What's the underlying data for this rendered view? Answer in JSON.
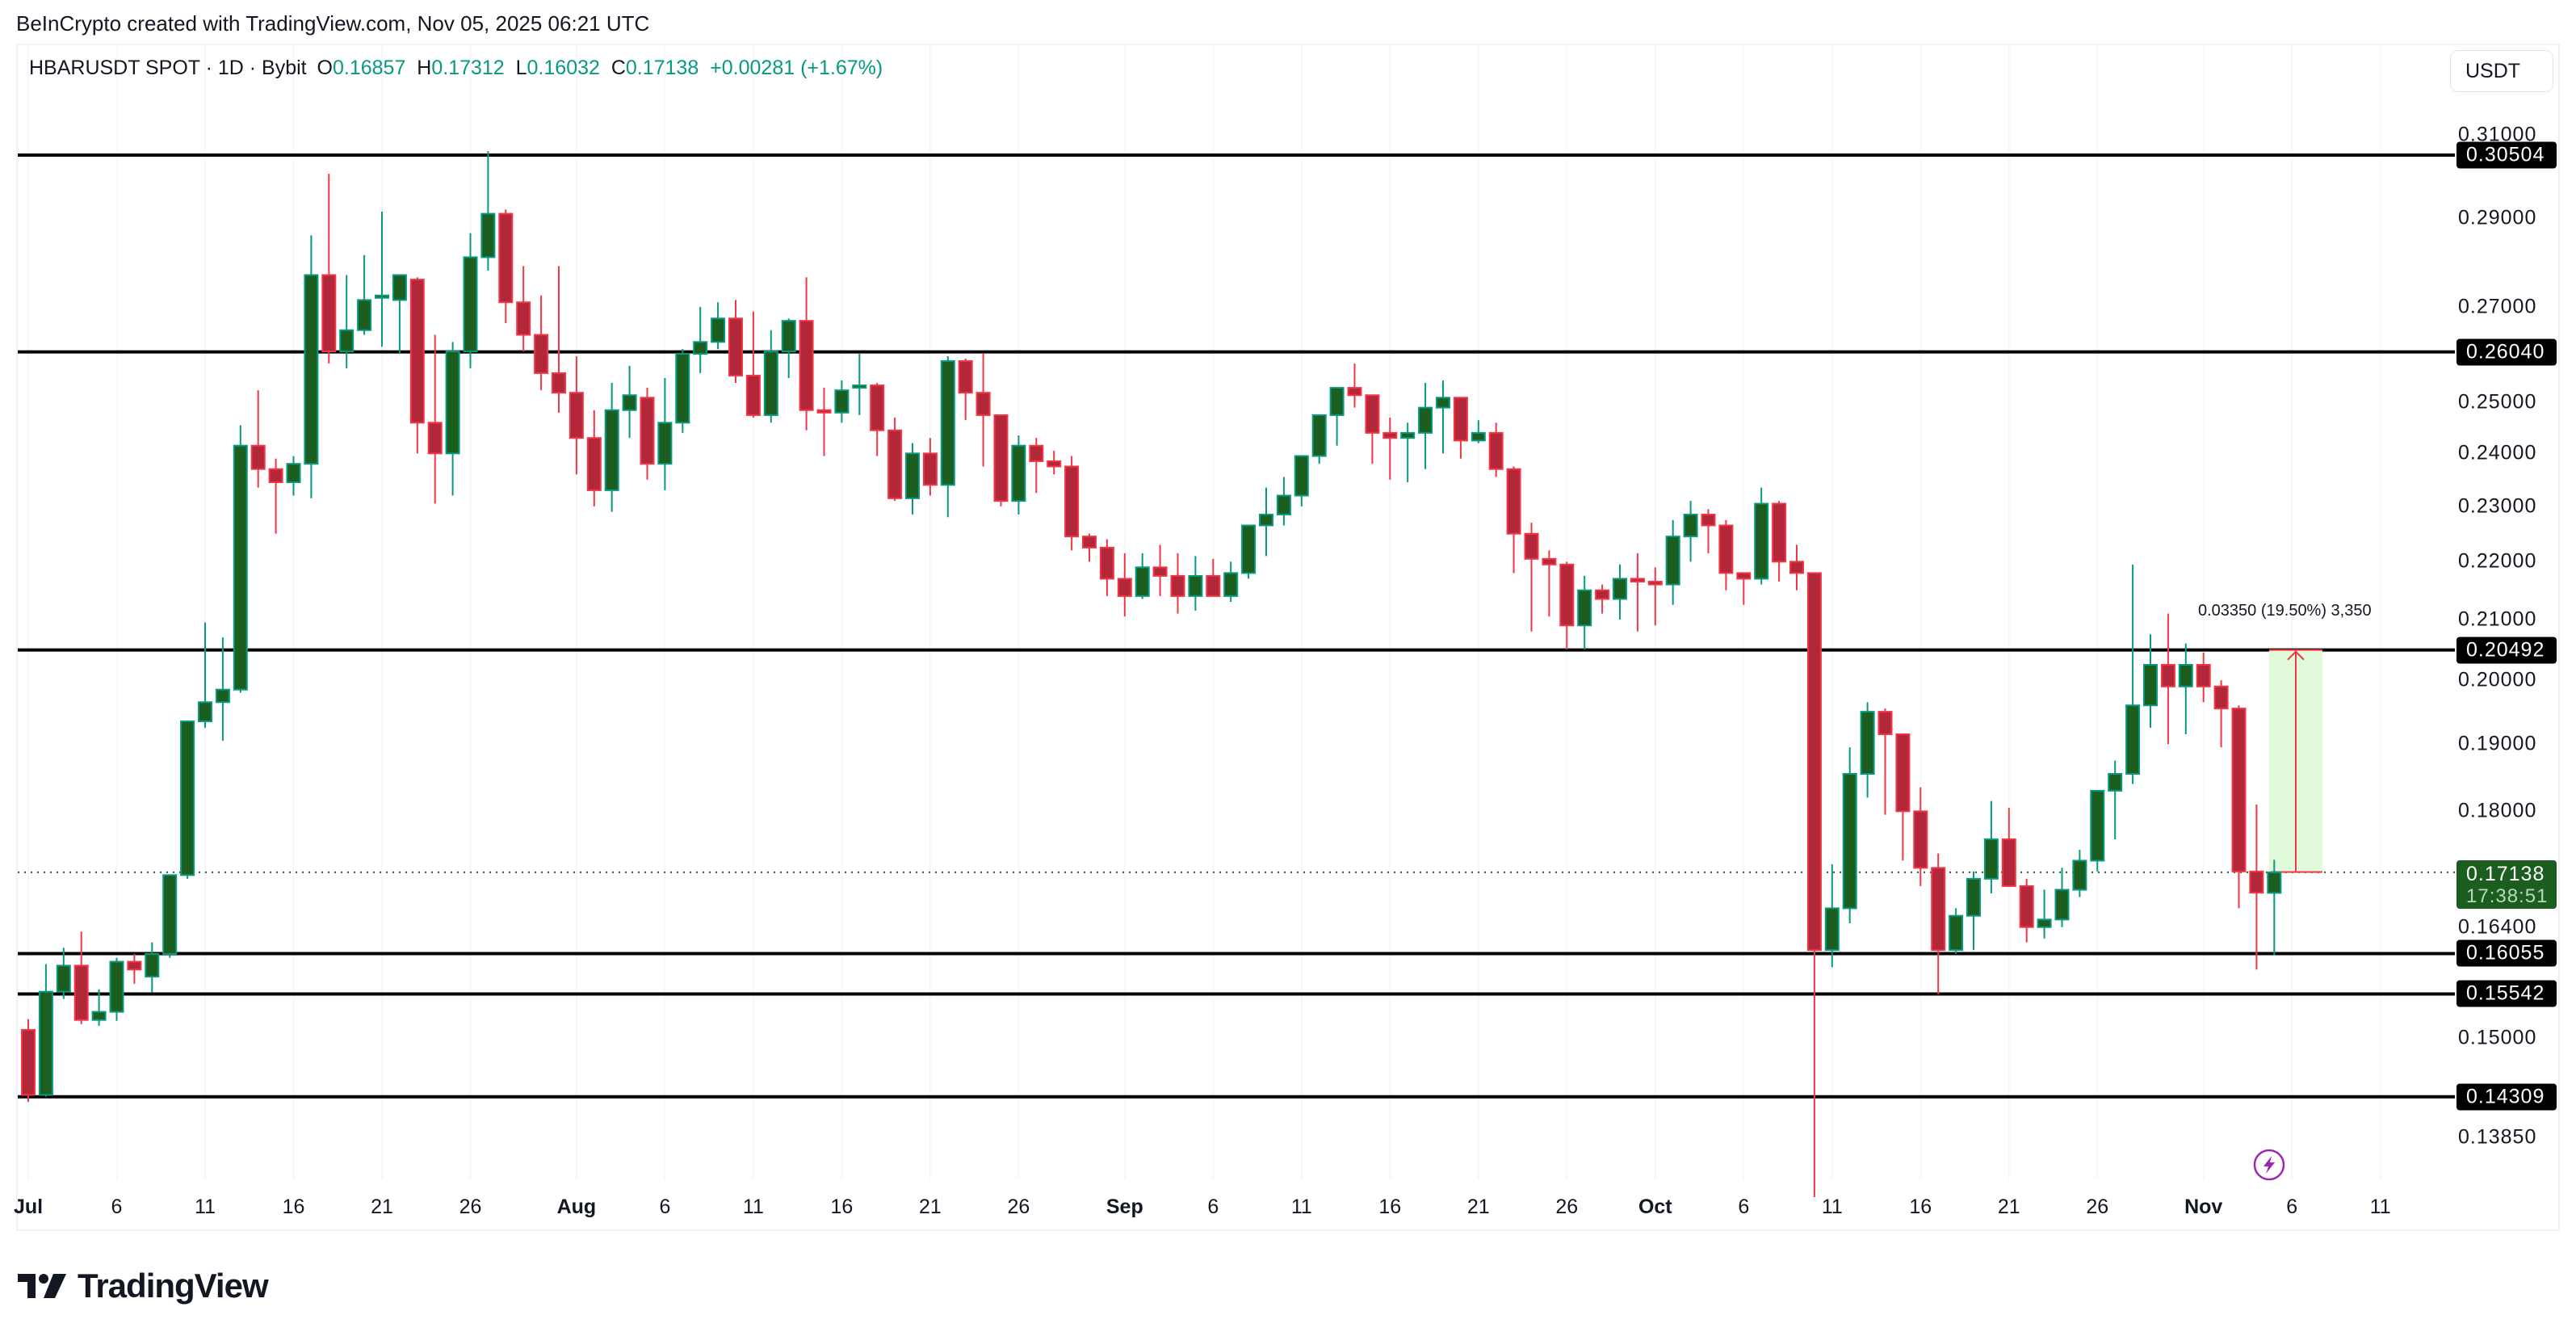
{
  "header": {
    "credit": "BeInCrypto created with TradingView.com, Nov 05, 2025 06:21 UTC"
  },
  "legend": {
    "symbol": "HBARUSDT SPOT · 1D · Bybit",
    "open_label": "O",
    "open": "0.16857",
    "high_label": "H",
    "high": "0.17312",
    "low_label": "L",
    "low": "0.16032",
    "close_label": "C",
    "close": "0.17138",
    "change": "+0.00281 (+1.67%)"
  },
  "currency_button": "USDT",
  "price_axis": {
    "ticks": [
      "0.31000",
      "0.29000",
      "0.27000",
      "0.25000",
      "0.24000",
      "0.23000",
      "0.22000",
      "0.21000",
      "0.20000",
      "0.19000",
      "0.18000",
      "0.16400",
      "0.15000",
      "0.13850"
    ],
    "tick_values": [
      0.31,
      0.29,
      0.27,
      0.25,
      0.24,
      0.23,
      0.22,
      0.21,
      0.2,
      0.19,
      0.18,
      0.164,
      0.15,
      0.1385
    ]
  },
  "horizontal_levels": [
    {
      "label": "0.30504",
      "value": 0.30504
    },
    {
      "label": "0.26040",
      "value": 0.2604
    },
    {
      "label": "0.20492",
      "value": 0.20492
    },
    {
      "label": "0.16055",
      "value": 0.16055
    },
    {
      "label": "0.15542",
      "value": 0.15542
    },
    {
      "label": "0.14309",
      "value": 0.14309
    }
  ],
  "current_price": {
    "label": "0.17138",
    "value": 0.17138,
    "countdown": "17:38:51"
  },
  "measure_tool": {
    "label": "0.03350 (19.50%) 3,350",
    "from": 0.17142,
    "to": 0.20492,
    "start_day": 127,
    "end_day": 130
  },
  "time_axis": [
    {
      "label": "Jul",
      "day": 0,
      "bold": true
    },
    {
      "label": "6",
      "day": 5
    },
    {
      "label": "11",
      "day": 10
    },
    {
      "label": "16",
      "day": 15
    },
    {
      "label": "21",
      "day": 20
    },
    {
      "label": "26",
      "day": 25
    },
    {
      "label": "Aug",
      "day": 31,
      "bold": true
    },
    {
      "label": "6",
      "day": 36
    },
    {
      "label": "11",
      "day": 41
    },
    {
      "label": "16",
      "day": 46
    },
    {
      "label": "21",
      "day": 51
    },
    {
      "label": "26",
      "day": 56
    },
    {
      "label": "Sep",
      "day": 62,
      "bold": true
    },
    {
      "label": "6",
      "day": 67
    },
    {
      "label": "11",
      "day": 72
    },
    {
      "label": "16",
      "day": 77
    },
    {
      "label": "21",
      "day": 82
    },
    {
      "label": "26",
      "day": 87
    },
    {
      "label": "Oct",
      "day": 92,
      "bold": true
    },
    {
      "label": "6",
      "day": 97
    },
    {
      "label": "11",
      "day": 102
    },
    {
      "label": "16",
      "day": 107
    },
    {
      "label": "21",
      "day": 112
    },
    {
      "label": "26",
      "day": 117
    },
    {
      "label": "Nov",
      "day": 123,
      "bold": true
    },
    {
      "label": "6",
      "day": 128
    },
    {
      "label": "11",
      "day": 133
    }
  ],
  "colors": {
    "up_body": "#1b5e20",
    "up_border": "#089981",
    "down_body": "#b2283a",
    "down_border": "#f23645",
    "level_line": "#000000",
    "measure_fill": "#e1fadc",
    "measure_line": "#f23645",
    "flash_icon": "#9c27b0"
  },
  "footer": {
    "logo_text": "TradingView"
  },
  "chart_data": {
    "type": "candlestick",
    "title": "HBARUSDT SPOT · 1D · Bybit",
    "xlabel": "",
    "ylabel": "USDT",
    "ylim": [
      0.133,
      0.314
    ],
    "y_scale": "log",
    "x_start": "2025-07-01",
    "x_end": "2025-11-05",
    "columns": [
      "date",
      "open",
      "high",
      "low",
      "close"
    ],
    "candles": [
      [
        "Jul 01",
        0.151,
        0.1523,
        0.1425,
        0.1433
      ],
      [
        "Jul 02",
        0.1433,
        0.1592,
        0.1431,
        0.1557
      ],
      [
        "Jul 03",
        0.1557,
        0.1613,
        0.1548,
        0.159
      ],
      [
        "Jul 04",
        0.159,
        0.1634,
        0.1517,
        0.1522
      ],
      [
        "Jul 05",
        0.1522,
        0.156,
        0.1515,
        0.1532
      ],
      [
        "Jul 06",
        0.1532,
        0.16,
        0.1521,
        0.1595
      ],
      [
        "Jul 07",
        0.1595,
        0.1605,
        0.1567,
        0.1585
      ],
      [
        "Jul 08",
        0.1576,
        0.162,
        0.1556,
        0.1605
      ],
      [
        "Jul 09",
        0.1605,
        0.171,
        0.16,
        0.171
      ],
      [
        "Jul 10",
        0.171,
        0.193,
        0.1705,
        0.1935
      ],
      [
        "Jul 11",
        0.1935,
        0.2095,
        0.1925,
        0.1965
      ],
      [
        "Jul 12",
        0.1965,
        0.207,
        0.1905,
        0.1985
      ],
      [
        "Jul 13",
        0.1985,
        0.2455,
        0.198,
        0.2415
      ],
      [
        "Jul 14",
        0.2415,
        0.2525,
        0.2335,
        0.237
      ],
      [
        "Jul 15",
        0.237,
        0.239,
        0.225,
        0.2345
      ],
      [
        "Jul 16",
        0.2345,
        0.2395,
        0.232,
        0.238
      ],
      [
        "Jul 17",
        0.238,
        0.286,
        0.2315,
        0.277
      ],
      [
        "Jul 18",
        0.277,
        0.3005,
        0.258,
        0.2605
      ],
      [
        "Jul 19",
        0.2605,
        0.277,
        0.257,
        0.265
      ],
      [
        "Jul 20",
        0.265,
        0.2815,
        0.264,
        0.2715
      ],
      [
        "Jul 21",
        0.272,
        0.2915,
        0.2615,
        0.2725
      ],
      [
        "Jul 22",
        0.2715,
        0.276,
        0.26,
        0.277
      ],
      [
        "Jul 23",
        0.276,
        0.2765,
        0.24,
        0.246
      ],
      [
        "Jul 24",
        0.246,
        0.264,
        0.2305,
        0.24
      ],
      [
        "Jul 25",
        0.24,
        0.2625,
        0.232,
        0.2605
      ],
      [
        "Jul 26",
        0.2605,
        0.2865,
        0.257,
        0.281
      ],
      [
        "Jul 27",
        0.281,
        0.306,
        0.278,
        0.291
      ],
      [
        "Jul 28",
        0.291,
        0.292,
        0.2665,
        0.271
      ],
      [
        "Jul 29",
        0.271,
        0.279,
        0.2605,
        0.264
      ],
      [
        "Jul 30",
        0.264,
        0.2725,
        0.2525,
        0.256
      ],
      [
        "Jul 31",
        0.256,
        0.279,
        0.248,
        0.252
      ],
      [
        "Aug 01",
        0.252,
        0.2595,
        0.236,
        0.243
      ],
      [
        "Aug 02",
        0.243,
        0.2485,
        0.23,
        0.233
      ],
      [
        "Aug 03",
        0.233,
        0.254,
        0.229,
        0.2485
      ],
      [
        "Aug 04",
        0.2485,
        0.2575,
        0.243,
        0.2515
      ],
      [
        "Aug 05",
        0.251,
        0.253,
        0.235,
        0.238
      ],
      [
        "Aug 06",
        0.238,
        0.255,
        0.233,
        0.246
      ],
      [
        "Aug 07",
        0.246,
        0.261,
        0.244,
        0.26
      ],
      [
        "Aug 08",
        0.26,
        0.27,
        0.256,
        0.2625
      ],
      [
        "Aug 09",
        0.2625,
        0.271,
        0.261,
        0.2675
      ],
      [
        "Aug 10",
        0.2675,
        0.2715,
        0.254,
        0.2555
      ],
      [
        "Aug 11",
        0.2555,
        0.269,
        0.247,
        0.2475
      ],
      [
        "Aug 12",
        0.2475,
        0.265,
        0.246,
        0.2605
      ],
      [
        "Aug 13",
        0.2605,
        0.2675,
        0.255,
        0.267
      ],
      [
        "Aug 14",
        0.267,
        0.2765,
        0.2445,
        0.2485
      ],
      [
        "Aug 15",
        0.2485,
        0.253,
        0.2395,
        0.248
      ],
      [
        "Aug 16",
        0.248,
        0.2545,
        0.246,
        0.2525
      ],
      [
        "Aug 17",
        0.253,
        0.26,
        0.2475,
        0.2535
      ],
      [
        "Aug 18",
        0.2535,
        0.254,
        0.2395,
        0.2445
      ],
      [
        "Aug 19",
        0.2445,
        0.247,
        0.231,
        0.2315
      ],
      [
        "Aug 20",
        0.2315,
        0.242,
        0.2285,
        0.24
      ],
      [
        "Aug 21",
        0.24,
        0.243,
        0.232,
        0.234
      ],
      [
        "Aug 22",
        0.234,
        0.2595,
        0.228,
        0.2585
      ],
      [
        "Aug 23",
        0.2585,
        0.259,
        0.2465,
        0.252
      ],
      [
        "Aug 24",
        0.252,
        0.26,
        0.2375,
        0.2475
      ],
      [
        "Aug 25",
        0.2475,
        0.2455,
        0.23,
        0.231
      ],
      [
        "Aug 26",
        0.231,
        0.2435,
        0.2285,
        0.2415
      ],
      [
        "Aug 27",
        0.2415,
        0.243,
        0.2325,
        0.2385
      ],
      [
        "Aug 28",
        0.2385,
        0.2405,
        0.236,
        0.2375
      ],
      [
        "Aug 29",
        0.2375,
        0.2395,
        0.222,
        0.2245
      ],
      [
        "Aug 30",
        0.2245,
        0.225,
        0.22,
        0.2225
      ],
      [
        "Aug 31",
        0.2225,
        0.224,
        0.214,
        0.217
      ],
      [
        "Sep 01",
        0.217,
        0.2215,
        0.2105,
        0.214
      ],
      [
        "Sep 02",
        0.214,
        0.2215,
        0.2135,
        0.219
      ],
      [
        "Sep 03",
        0.219,
        0.223,
        0.214,
        0.2175
      ],
      [
        "Sep 04",
        0.2175,
        0.2215,
        0.211,
        0.214
      ],
      [
        "Sep 05",
        0.214,
        0.221,
        0.2115,
        0.2175
      ],
      [
        "Sep 06",
        0.2175,
        0.2205,
        0.214,
        0.214
      ],
      [
        "Sep 07",
        0.214,
        0.22,
        0.213,
        0.218
      ],
      [
        "Sep 08",
        0.218,
        0.2255,
        0.217,
        0.2265
      ],
      [
        "Sep 09",
        0.2265,
        0.2335,
        0.221,
        0.2285
      ],
      [
        "Sep 10",
        0.2285,
        0.2355,
        0.2265,
        0.232
      ],
      [
        "Sep 11",
        0.232,
        0.2385,
        0.23,
        0.2395
      ],
      [
        "Sep 12",
        0.2395,
        0.2455,
        0.238,
        0.2475
      ],
      [
        "Sep 13",
        0.2475,
        0.25,
        0.2415,
        0.253
      ],
      [
        "Sep 14",
        0.253,
        0.258,
        0.249,
        0.2515
      ],
      [
        "Sep 15",
        0.2515,
        0.2515,
        0.238,
        0.244
      ],
      [
        "Sep 16",
        0.244,
        0.247,
        0.235,
        0.243
      ],
      [
        "Sep 17",
        0.243,
        0.246,
        0.2345,
        0.244
      ],
      [
        "Sep 18",
        0.244,
        0.254,
        0.237,
        0.249
      ],
      [
        "Sep 19",
        0.249,
        0.2545,
        0.24,
        0.251
      ],
      [
        "Sep 20",
        0.251,
        0.251,
        0.239,
        0.2425
      ],
      [
        "Sep 21",
        0.2425,
        0.2465,
        0.242,
        0.244
      ],
      [
        "Sep 22",
        0.244,
        0.246,
        0.2355,
        0.237
      ],
      [
        "Sep 23",
        0.237,
        0.2375,
        0.218,
        0.225
      ],
      [
        "Sep 24",
        0.225,
        0.227,
        0.208,
        0.2205
      ],
      [
        "Sep 25",
        0.2205,
        0.222,
        0.2105,
        0.2195
      ],
      [
        "Sep 26",
        0.2195,
        0.22,
        0.205,
        0.209
      ],
      [
        "Sep 27",
        0.209,
        0.2175,
        0.205,
        0.215
      ],
      [
        "Sep 28",
        0.215,
        0.216,
        0.211,
        0.2135
      ],
      [
        "Sep 29",
        0.2135,
        0.2195,
        0.21,
        0.217
      ],
      [
        "Sep 30",
        0.217,
        0.2215,
        0.208,
        0.2165
      ],
      [
        "Oct 01",
        0.2165,
        0.219,
        0.209,
        0.216
      ],
      [
        "Oct 02",
        0.216,
        0.2275,
        0.2125,
        0.2245
      ],
      [
        "Oct 03",
        0.2245,
        0.231,
        0.22,
        0.2285
      ],
      [
        "Oct 04",
        0.2285,
        0.2295,
        0.2215,
        0.2265
      ],
      [
        "Oct 05",
        0.2265,
        0.2275,
        0.215,
        0.218
      ],
      [
        "Oct 06",
        0.218,
        0.2175,
        0.2125,
        0.217
      ],
      [
        "Oct 07",
        0.217,
        0.2335,
        0.216,
        0.2305
      ],
      [
        "Oct 08",
        0.2305,
        0.231,
        0.2165,
        0.22
      ],
      [
        "Oct 09",
        0.22,
        0.223,
        0.215,
        0.218
      ],
      [
        "Oct 10",
        0.218,
        0.218,
        0.132,
        0.161
      ],
      [
        "Oct 11",
        0.161,
        0.1725,
        0.1588,
        0.1665
      ],
      [
        "Oct 12",
        0.1665,
        0.1895,
        0.1645,
        0.1855
      ],
      [
        "Oct 13",
        0.1855,
        0.1965,
        0.182,
        0.195
      ],
      [
        "Oct 14",
        0.195,
        0.1955,
        0.1795,
        0.1915
      ],
      [
        "Oct 15",
        0.1915,
        0.19,
        0.173,
        0.18
      ],
      [
        "Oct 16",
        0.18,
        0.1835,
        0.1695,
        0.172
      ],
      [
        "Oct 17",
        0.172,
        0.174,
        0.1554,
        0.161
      ],
      [
        "Oct 18",
        0.161,
        0.1665,
        0.1605,
        0.1655
      ],
      [
        "Oct 19",
        0.1655,
        0.1715,
        0.161,
        0.1705
      ],
      [
        "Oct 20",
        0.1705,
        0.1815,
        0.1685,
        0.176
      ],
      [
        "Oct 21",
        0.176,
        0.1805,
        0.171,
        0.1695
      ],
      [
        "Oct 22",
        0.1695,
        0.1705,
        0.162,
        0.164
      ],
      [
        "Oct 23",
        0.164,
        0.169,
        0.1625,
        0.165
      ],
      [
        "Oct 24",
        0.165,
        0.172,
        0.164,
        0.169
      ],
      [
        "Oct 25",
        0.169,
        0.1745,
        0.168,
        0.173
      ],
      [
        "Oct 26",
        0.173,
        0.179,
        0.1715,
        0.183
      ],
      [
        "Oct 27",
        0.183,
        0.1875,
        0.176,
        0.1855
      ],
      [
        "Oct 28",
        0.1855,
        0.2195,
        0.184,
        0.196
      ],
      [
        "Oct 29",
        0.196,
        0.2075,
        0.1925,
        0.2025
      ],
      [
        "Oct 30",
        0.2025,
        0.211,
        0.19,
        0.199
      ],
      [
        "Oct 31",
        0.199,
        0.206,
        0.1915,
        0.2025
      ],
      [
        "Nov 01",
        0.2025,
        0.2045,
        0.1965,
        0.199
      ],
      [
        "Nov 02",
        0.199,
        0.2,
        0.1895,
        0.1955
      ],
      [
        "Nov 03",
        0.1955,
        0.196,
        0.1665,
        0.1715
      ],
      [
        "Nov 04",
        0.1715,
        0.181,
        0.1585,
        0.1686
      ],
      [
        "Nov 05",
        0.16857,
        0.17312,
        0.16032,
        0.17138
      ]
    ]
  }
}
